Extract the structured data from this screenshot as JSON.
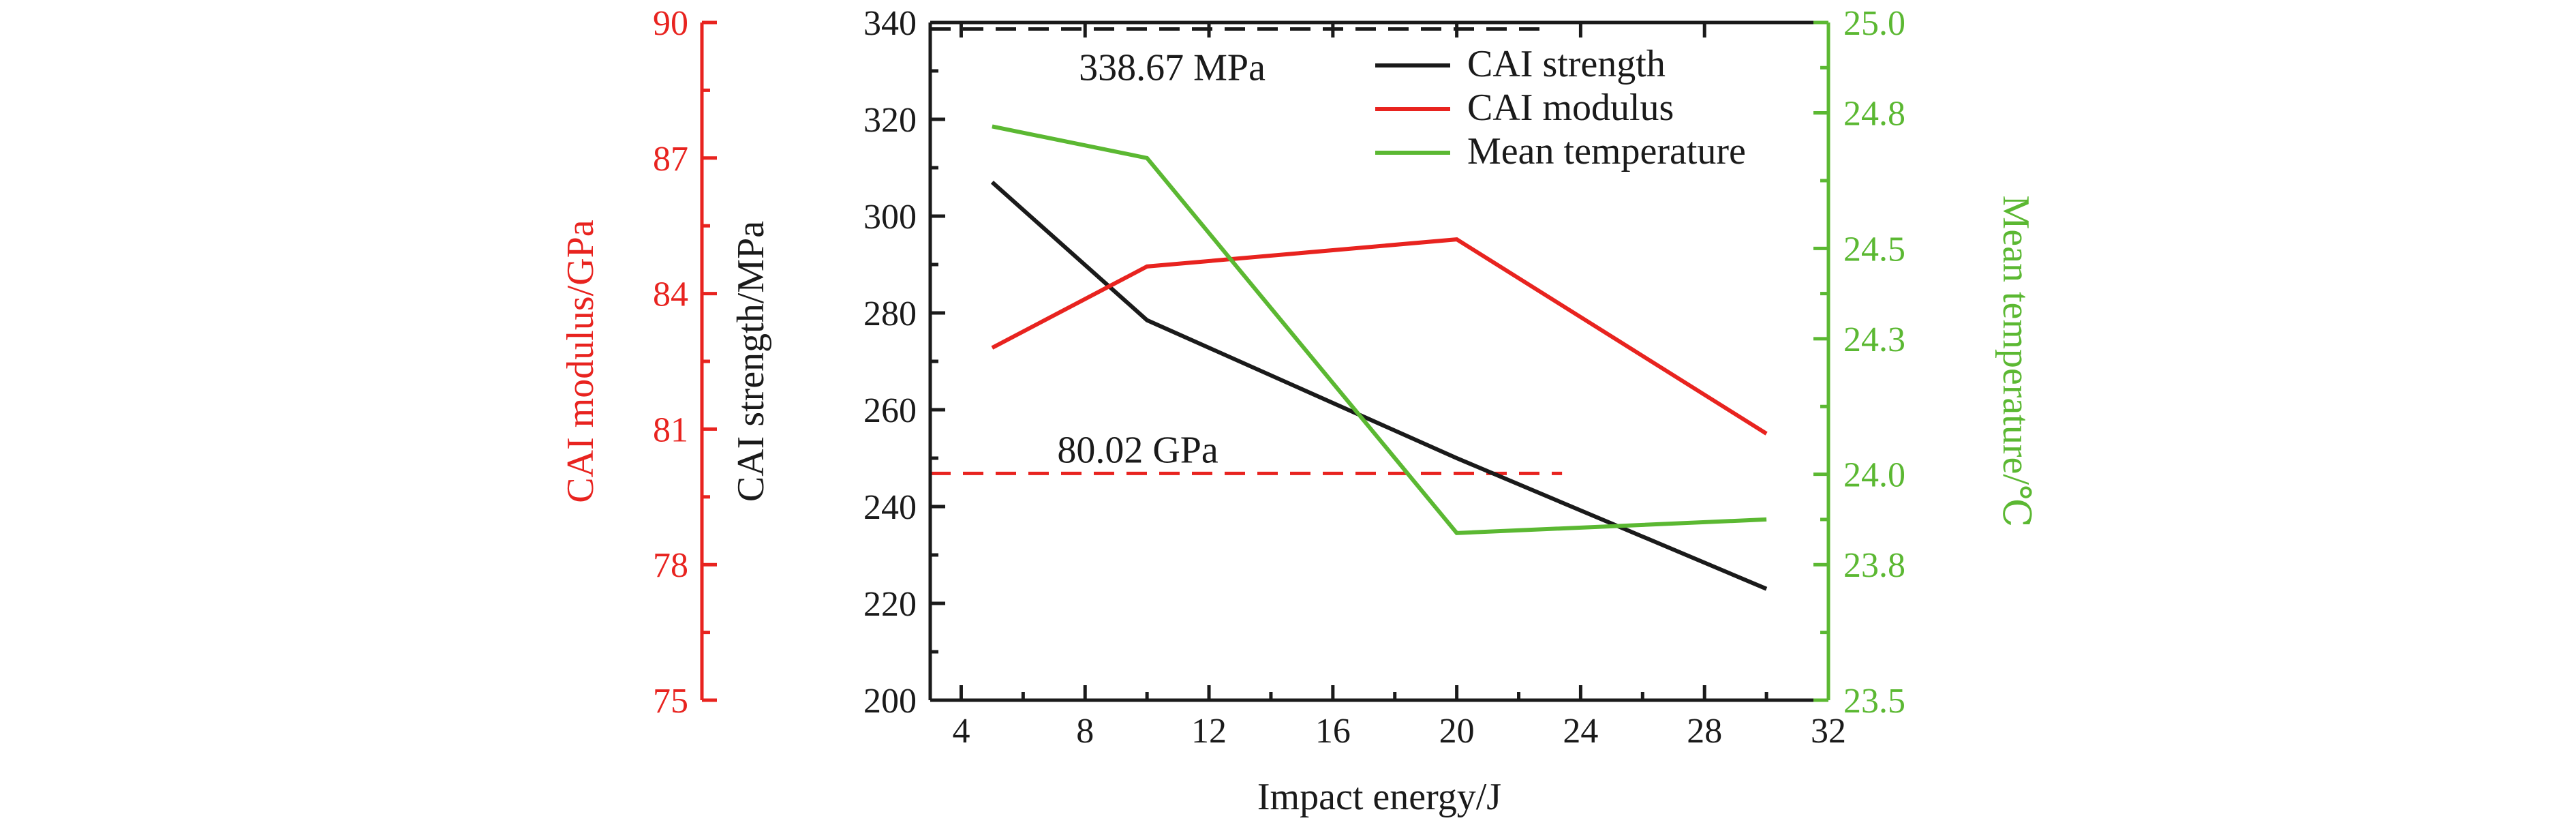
{
  "chart_data": {
    "type": "line",
    "x": [
      5,
      10,
      20,
      30
    ],
    "xlabel": "Impact energy/J",
    "xlim": [
      3,
      32
    ],
    "xticks": [
      "4",
      "8",
      "12",
      "16",
      "20",
      "24",
      "28",
      "32"
    ],
    "series": [
      {
        "name": "CAI strength",
        "axis": "strength",
        "color": "#1a1a1a",
        "values": [
          307.0,
          278.5,
          250.0,
          223.0
        ]
      },
      {
        "name": "CAI modulus",
        "axis": "modulus",
        "color": "#e8231f",
        "values": [
          82.8,
          84.6,
          85.2,
          80.9
        ]
      },
      {
        "name": "Mean temperature",
        "axis": "temperature",
        "color": "#5bb832",
        "values": [
          24.77,
          24.7,
          23.87,
          23.9
        ]
      }
    ],
    "axes": {
      "strength": {
        "label": "CAI strength/MPa",
        "color": "#1a1a1a",
        "ylim": [
          200,
          340
        ],
        "ticks": [
          "200",
          "220",
          "240",
          "260",
          "280",
          "300",
          "320",
          "340"
        ]
      },
      "modulus": {
        "label": "CAI modulus/GPa",
        "color": "#e8231f",
        "ylim": [
          75,
          90
        ],
        "ticks": [
          "75",
          "78",
          "81",
          "84",
          "87",
          "90"
        ]
      },
      "temperature": {
        "label": "Mean temperature/℃",
        "color": "#5bb832",
        "ylim": [
          23.5,
          25.0
        ],
        "ticks": [
          "23.5",
          "23.8",
          "24.0",
          "24.3",
          "24.5",
          "24.8",
          "25.0"
        ]
      }
    },
    "reference_lines": [
      {
        "label": "338.67 MPa",
        "axis": "strength",
        "value": 338.67,
        "x_range": [
          3,
          23
        ],
        "color": "#1a1a1a"
      },
      {
        "label": "80.02 GPa",
        "axis": "modulus",
        "value": 80.02,
        "x_range": [
          3,
          23.4
        ],
        "color": "#e8231f"
      }
    ],
    "legend": "top-right",
    "grid": false
  }
}
